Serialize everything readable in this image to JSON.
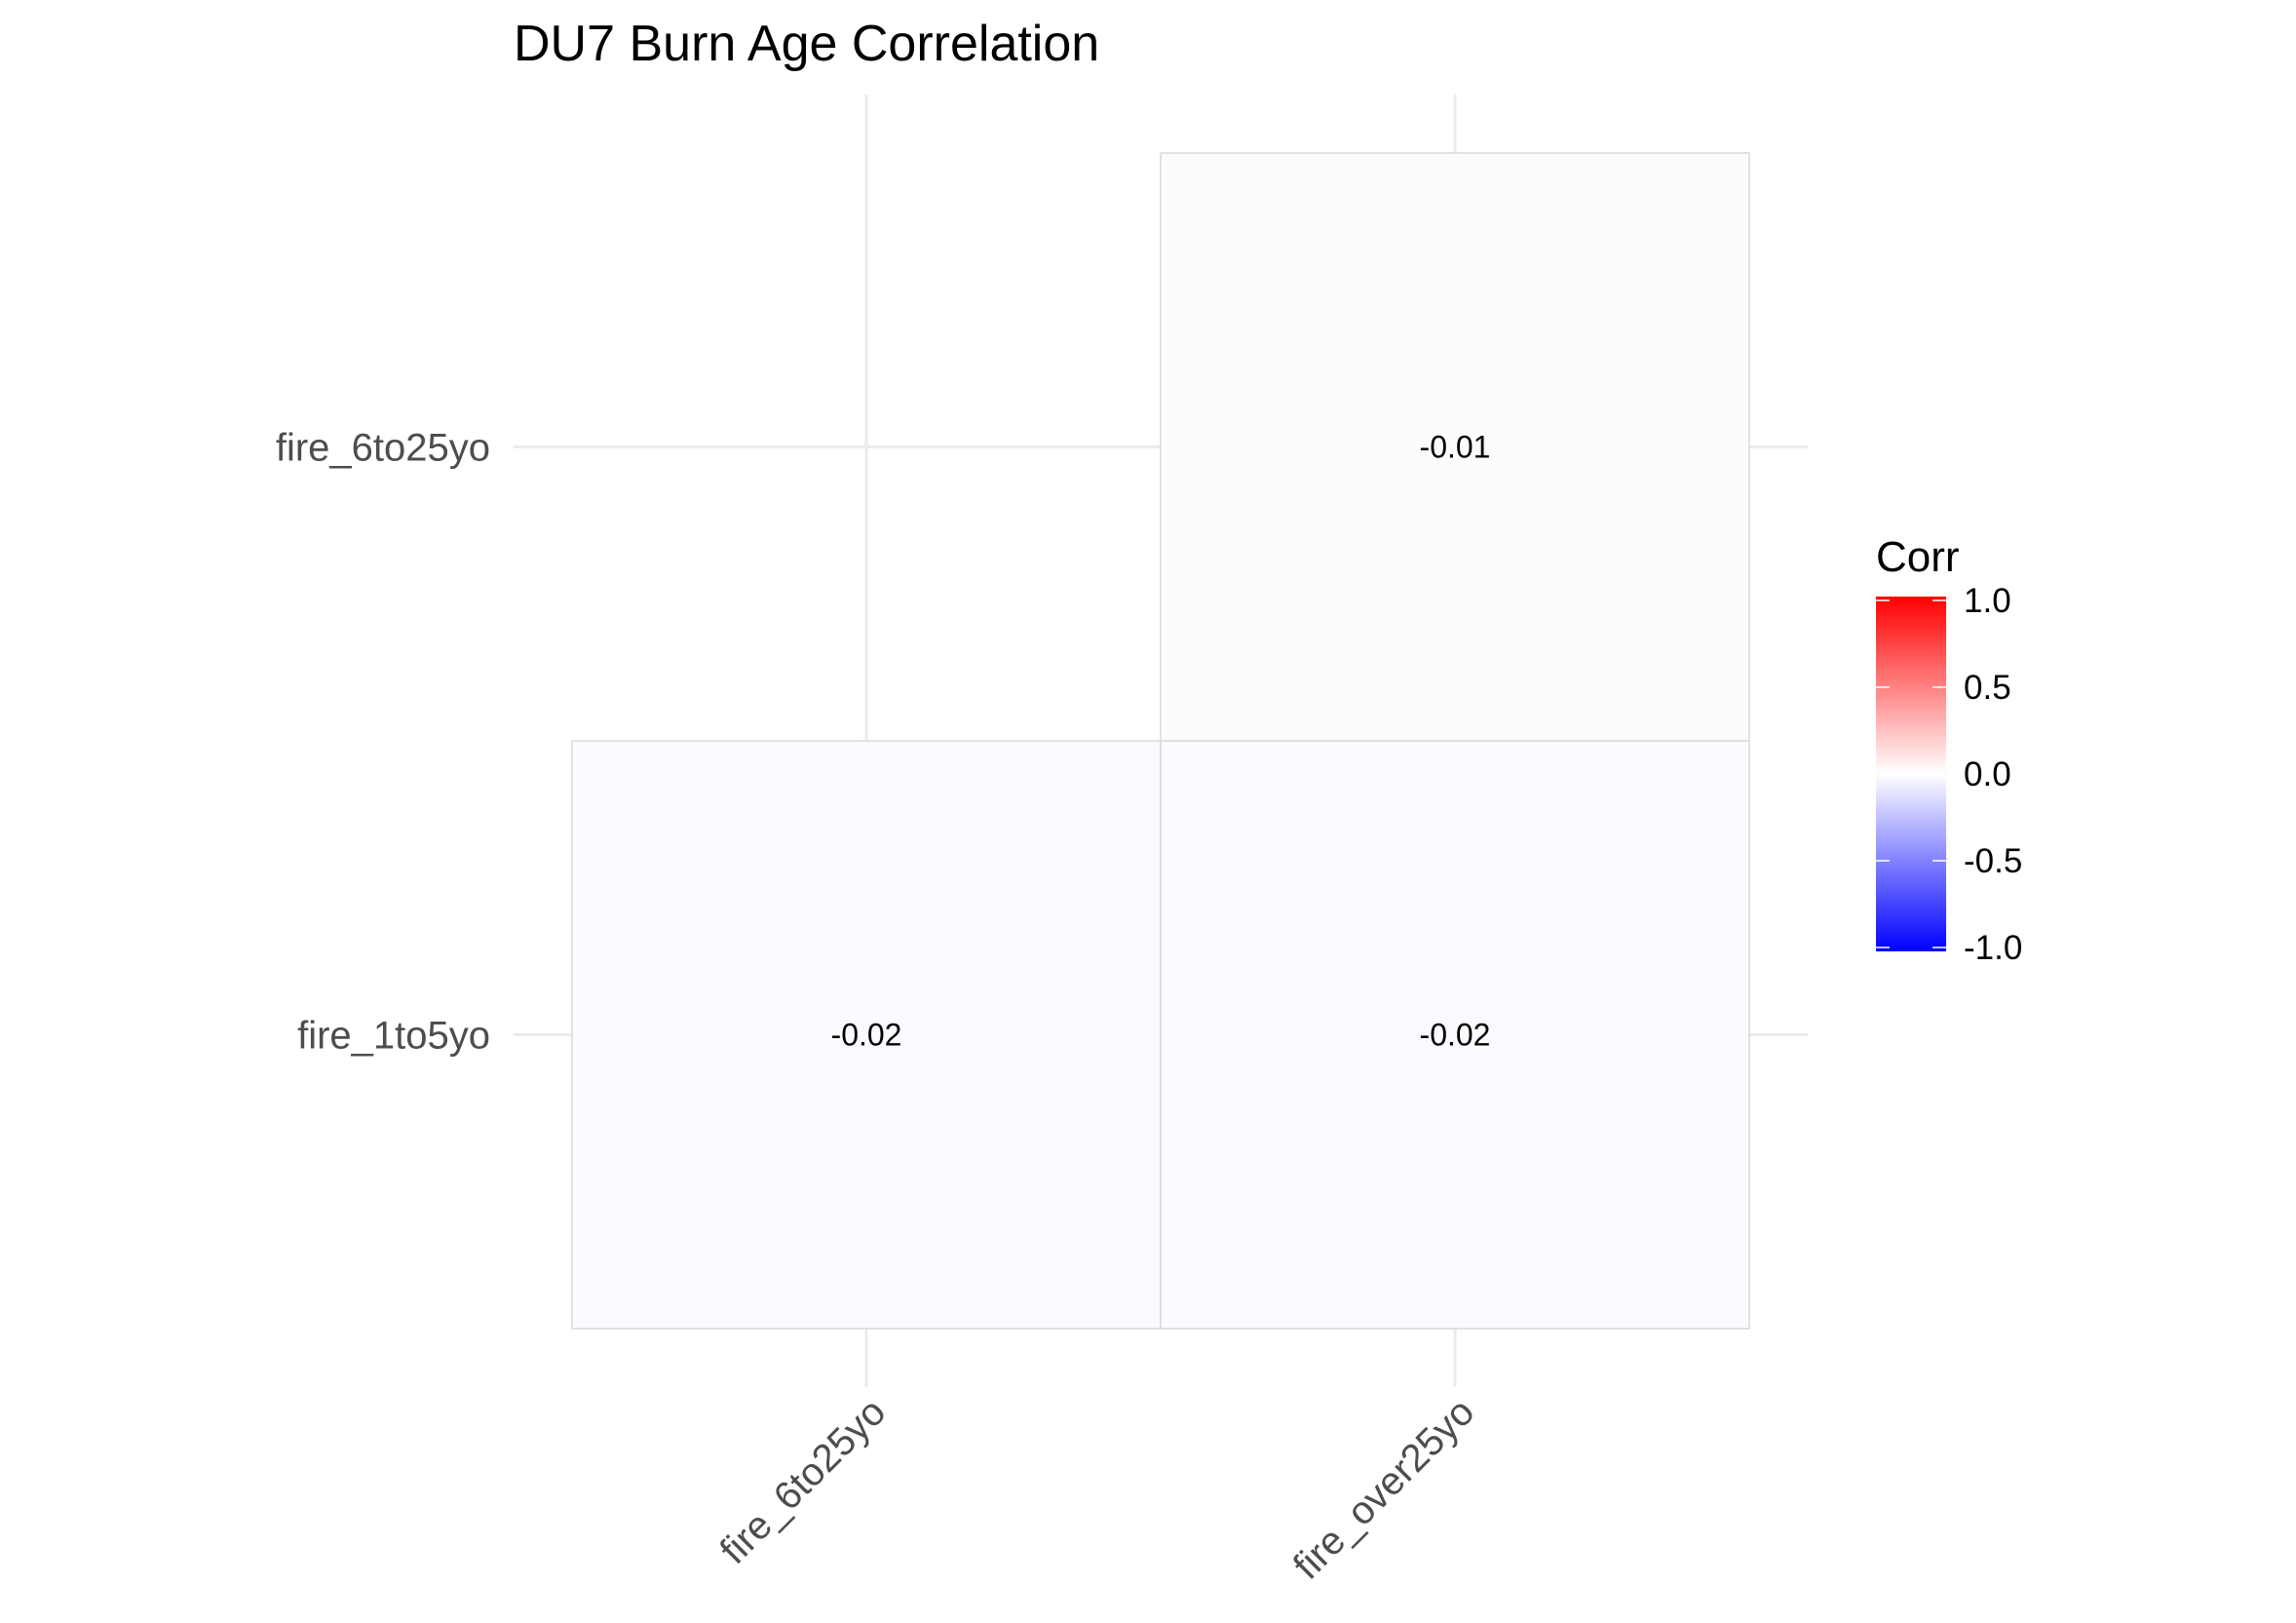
{
  "chart_data": {
    "type": "heatmap",
    "title": "DU7 Burn Age Correlation",
    "xlabel": "",
    "ylabel": "",
    "x_categories": [
      "fire_6to25yo",
      "fire_over25yo"
    ],
    "y_categories": [
      "fire_1to5yo",
      "fire_6to25yo"
    ],
    "cells": [
      {
        "x": "fire_6to25yo",
        "y": "fire_1to5yo",
        "value": -0.02,
        "label": "-0.02"
      },
      {
        "x": "fire_over25yo",
        "y": "fire_1to5yo",
        "value": -0.02,
        "label": "-0.02"
      },
      {
        "x": "fire_over25yo",
        "y": "fire_6to25yo",
        "value": -0.01,
        "label": "-0.01"
      }
    ],
    "grid": true,
    "legend": {
      "title": "Corr",
      "position": "right",
      "range": [
        -1,
        1
      ],
      "ticks": [
        1.0,
        0.5,
        0.0,
        -0.5,
        -1.0
      ],
      "tick_labels": [
        "1.0",
        "0.5",
        "0.0",
        "-0.5",
        "-1.0"
      ],
      "colors": {
        "low": "#0000ff",
        "mid": "#ffffff",
        "high": "#ff0000"
      }
    }
  }
}
